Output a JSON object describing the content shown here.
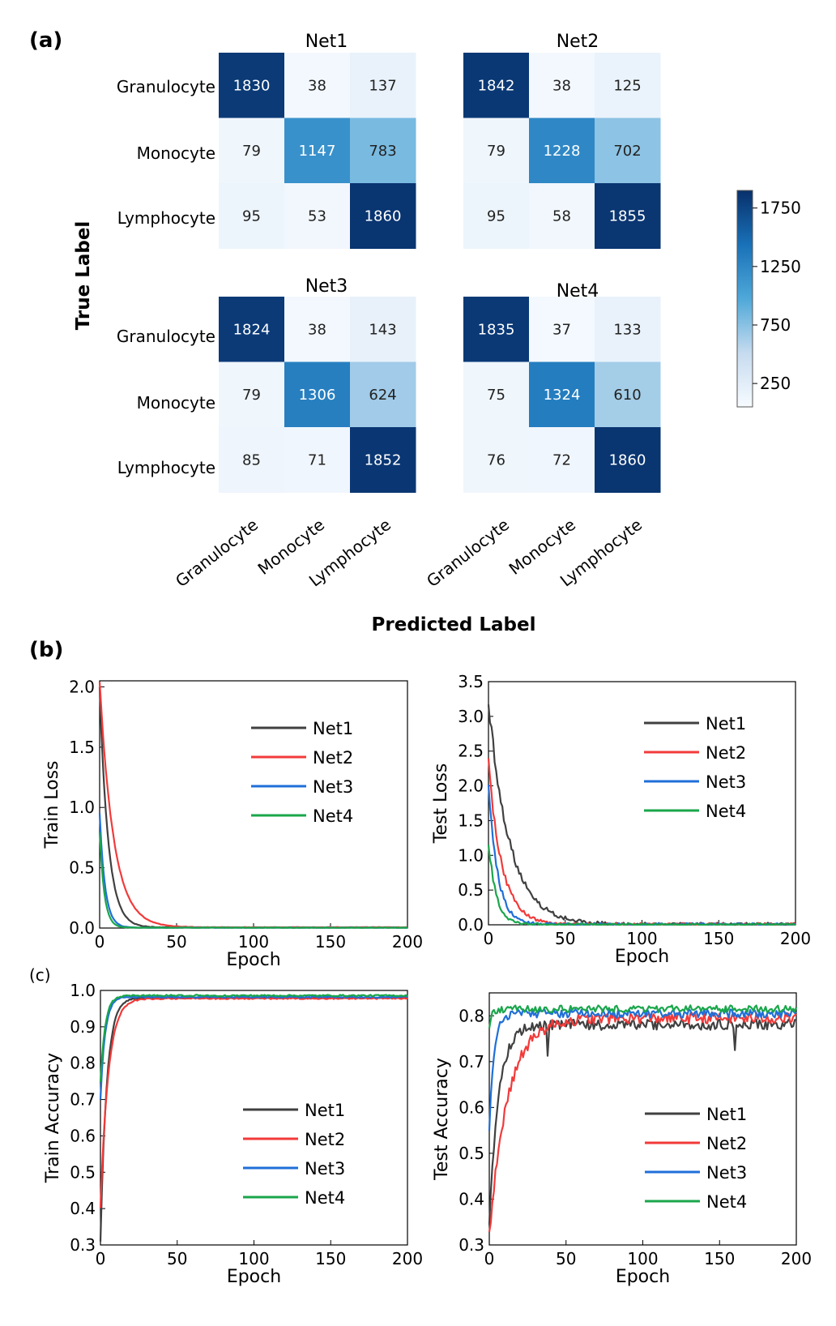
{
  "figure": {
    "panel_a_label": "(a)",
    "panel_b_label": "(b)",
    "panel_c_label": "(c)",
    "true_label_title": "True Label",
    "predicted_label_title": "Predicted Label",
    "class_labels": [
      "Granulocyte",
      "Monocyte",
      "Lymphocyte"
    ]
  },
  "colorbar": {
    "ticks": [
      250,
      750,
      1250,
      1750
    ],
    "min": 0,
    "max": 1900,
    "color_low": "#f7fbff",
    "color_high": "#08306b"
  },
  "series_colors": {
    "Net1": "#404040",
    "Net2": "#f23a3a",
    "Net3": "#1f6fd8",
    "Net4": "#1aa64b"
  },
  "chart_data": [
    {
      "type": "heatmap",
      "title": "Net1",
      "rows": [
        "Granulocyte",
        "Monocyte",
        "Lymphocyte"
      ],
      "cols": [
        "Granulocyte",
        "Monocyte",
        "Lymphocyte"
      ],
      "values": [
        [
          1830,
          38,
          137
        ],
        [
          79,
          1147,
          783
        ],
        [
          95,
          53,
          1860
        ]
      ]
    },
    {
      "type": "heatmap",
      "title": "Net2",
      "rows": [
        "Granulocyte",
        "Monocyte",
        "Lymphocyte"
      ],
      "cols": [
        "Granulocyte",
        "Monocyte",
        "Lymphocyte"
      ],
      "values": [
        [
          1842,
          38,
          125
        ],
        [
          79,
          1228,
          702
        ],
        [
          95,
          58,
          1855
        ]
      ]
    },
    {
      "type": "heatmap",
      "title": "Net3",
      "rows": [
        "Granulocyte",
        "Monocyte",
        "Lymphocyte"
      ],
      "cols": [
        "Granulocyte",
        "Monocyte",
        "Lymphocyte"
      ],
      "values": [
        [
          1824,
          38,
          143
        ],
        [
          79,
          1306,
          624
        ],
        [
          85,
          71,
          1852
        ]
      ]
    },
    {
      "type": "heatmap",
      "title": "Net4",
      "rows": [
        "Granulocyte",
        "Monocyte",
        "Lymphocyte"
      ],
      "cols": [
        "Granulocyte",
        "Monocyte",
        "Lymphocyte"
      ],
      "values": [
        [
          1835,
          37,
          133
        ],
        [
          75,
          1324,
          610
        ],
        [
          76,
          72,
          1860
        ]
      ]
    },
    {
      "type": "line",
      "ylabel": "Train Loss",
      "xlabel": "Epoch",
      "xlim": [
        0,
        200
      ],
      "ylim": [
        0,
        2.05
      ],
      "xticks": [
        0,
        50,
        100,
        150,
        200
      ],
      "yticks": [
        "0.0",
        "0.5",
        "1.0",
        "1.5",
        "2.0"
      ],
      "legend": [
        "Net1",
        "Net2",
        "Net3",
        "Net4"
      ],
      "series": [
        {
          "name": "Net1",
          "start": 2.0,
          "decay": 5.5,
          "floor": 0.005,
          "noise": 0.004
        },
        {
          "name": "Net2",
          "start": 2.05,
          "decay": 9.0,
          "floor": 0.006,
          "noise": 0.004
        },
        {
          "name": "Net3",
          "start": 0.95,
          "decay": 3.5,
          "floor": 0.003,
          "noise": 0.003
        },
        {
          "name": "Net4",
          "start": 0.8,
          "decay": 3.0,
          "floor": 0.003,
          "noise": 0.003
        }
      ]
    },
    {
      "type": "line",
      "ylabel": "Test Loss",
      "xlabel": "Epoch",
      "xlim": [
        0,
        200
      ],
      "ylim": [
        0,
        3.5
      ],
      "xticks": [
        0,
        50,
        100,
        150,
        200
      ],
      "yticks": [
        "0.0",
        "0.5",
        "1.0",
        "1.5",
        "2.0",
        "2.5",
        "3.0",
        "3.5"
      ],
      "legend": [
        "Net1",
        "Net2",
        "Net3",
        "Net4"
      ],
      "series": [
        {
          "name": "Net1",
          "start": 3.2,
          "decay": 14,
          "floor": 0.005,
          "noise": 0.05
        },
        {
          "name": "Net2",
          "start": 2.3,
          "decay": 9,
          "floor": 0.005,
          "noise": 0.04
        },
        {
          "name": "Net3",
          "start": 2.0,
          "decay": 6,
          "floor": 0.004,
          "noise": 0.04
        },
        {
          "name": "Net4",
          "start": 1.2,
          "decay": 5,
          "floor": 0.004,
          "noise": 0.03
        }
      ]
    },
    {
      "type": "line",
      "ylabel": "Train Accuracy",
      "xlabel": "Epoch",
      "xlim": [
        0,
        200
      ],
      "ylim": [
        0.3,
        1.0
      ],
      "xticks": [
        0,
        50,
        100,
        150,
        200
      ],
      "yticks": [
        "0.3",
        "0.4",
        "0.5",
        "0.6",
        "0.7",
        "0.8",
        "0.9",
        "1.0"
      ],
      "legend": [
        "Net1",
        "Net2",
        "Net3",
        "Net4"
      ],
      "series": [
        {
          "name": "Net1",
          "start": 0.31,
          "plateau": 0.98,
          "rate": 4.0,
          "noise": 0.002
        },
        {
          "name": "Net2",
          "start": 0.4,
          "plateau": 0.978,
          "rate": 5.0,
          "noise": 0.002
        },
        {
          "name": "Net3",
          "start": 0.7,
          "plateau": 0.982,
          "rate": 3.0,
          "noise": 0.002
        },
        {
          "name": "Net4",
          "start": 0.75,
          "plateau": 0.986,
          "rate": 3.0,
          "noise": 0.002
        }
      ]
    },
    {
      "type": "line",
      "ylabel": "Test Accuracy",
      "xlabel": "Epoch",
      "xlim": [
        0,
        200
      ],
      "ylim": [
        0.3,
        0.85
      ],
      "xticks": [
        0,
        50,
        100,
        150,
        200
      ],
      "yticks": [
        "0.3",
        "0.4",
        "0.5",
        "0.6",
        "0.7",
        "0.8"
      ],
      "legend": [
        "Net1",
        "Net2",
        "Net3",
        "Net4"
      ],
      "series": [
        {
          "name": "Net1",
          "start": 0.35,
          "plateau": 0.78,
          "rate": 6,
          "noise": 0.012
        },
        {
          "name": "Net2",
          "start": 0.32,
          "plateau": 0.795,
          "rate": 12,
          "noise": 0.012
        },
        {
          "name": "Net3",
          "start": 0.55,
          "plateau": 0.805,
          "rate": 3,
          "noise": 0.009
        },
        {
          "name": "Net4",
          "start": 0.78,
          "plateau": 0.815,
          "rate": 2,
          "noise": 0.008
        }
      ]
    }
  ]
}
